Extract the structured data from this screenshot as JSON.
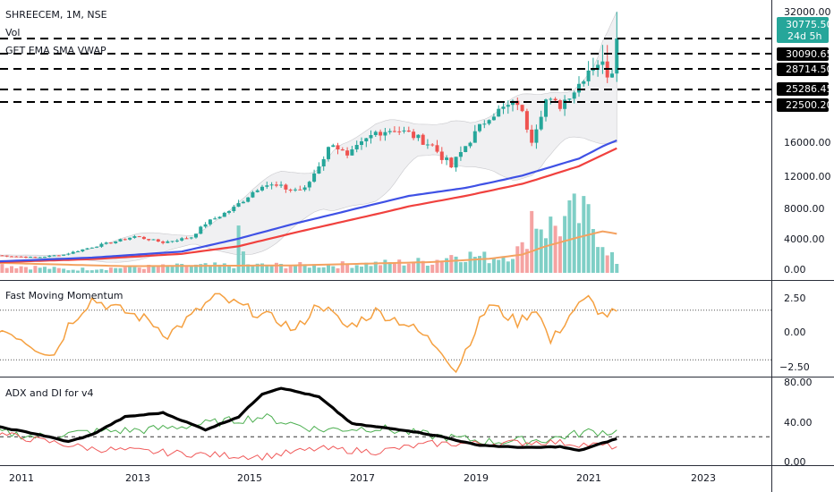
{
  "header": {
    "symbol": "SHREECEM, 1M, NSE",
    "volume_label": "Vol",
    "overlay_label": "GET EMA SMA VWAP"
  },
  "panes": {
    "momentum_title": "Fast Moving Momentum",
    "adx_title": "ADX and DI for v4"
  },
  "price_axis": {
    "ticks": [
      "32000.00",
      "16000.00",
      "12000.00",
      "8000.00",
      "4000.00",
      "0.00"
    ],
    "last_price": "30775.50",
    "countdown": "24d 5h",
    "levels": [
      "30090.65",
      "28714.50",
      "25286.45",
      "22500.20"
    ]
  },
  "momentum_axis": {
    "ticks": [
      "2.50",
      "0.00",
      "−2.50"
    ]
  },
  "adx_axis": {
    "ticks": [
      "80.00",
      "40.00",
      "0.00"
    ]
  },
  "time_axis": {
    "ticks": [
      "2011",
      "2013",
      "2015",
      "2017",
      "2019",
      "2021",
      "2023"
    ]
  },
  "colors": {
    "up": "#26a69a",
    "down": "#ef5350",
    "ema": "#3f51e5",
    "sma": "#f0413e",
    "vwap": "#f4a261",
    "momentum": "#f5a040",
    "adx": "#000000",
    "di_plus": "#4caf50",
    "di_minus": "#f05a5a",
    "last_price_bg": "#26a69a"
  },
  "chart_data": {
    "type": "candlestick",
    "x_range": [
      "2010-10",
      "2024-02"
    ],
    "price_ylim": [
      0,
      32000
    ],
    "price_levels": [
      30090.65,
      28714.5,
      25286.45,
      22500.2
    ],
    "last_price": 30775.5,
    "price_anchors": [
      [
        "2010-10",
        2300
      ],
      [
        "2011-06",
        2000
      ],
      [
        "2011-12",
        2400
      ],
      [
        "2012-06",
        3400
      ],
      [
        "2012-12",
        4300
      ],
      [
        "2013-03",
        4800
      ],
      [
        "2013-09",
        4000
      ],
      [
        "2014-03",
        4700
      ],
      [
        "2014-06",
        6500
      ],
      [
        "2014-12",
        8500
      ],
      [
        "2015-06",
        11500
      ],
      [
        "2015-12",
        10800
      ],
      [
        "2016-03",
        10800
      ],
      [
        "2016-06",
        13800
      ],
      [
        "2016-09",
        16500
      ],
      [
        "2016-12",
        14500
      ],
      [
        "2017-06",
        18000
      ],
      [
        "2017-10",
        18500
      ],
      [
        "2018-01",
        17800
      ],
      [
        "2018-06",
        16000
      ],
      [
        "2018-10",
        13500
      ],
      [
        "2019-01",
        16000
      ],
      [
        "2019-06",
        20500
      ],
      [
        "2019-12",
        22500
      ],
      [
        "2020-03",
        17000
      ],
      [
        "2020-06",
        23000
      ],
      [
        "2020-09",
        22000
      ],
      [
        "2020-12",
        25000
      ],
      [
        "2021-03",
        28714.5
      ],
      [
        "2021-05",
        29500
      ],
      [
        "2021-06",
        28800
      ],
      [
        "2021-07",
        28000
      ],
      [
        "2021-08",
        28600
      ],
      [
        "2021-09",
        30775.5
      ]
    ],
    "ema_anchors": [
      [
        "2010-10",
        1500
      ],
      [
        "2012-06",
        2000
      ],
      [
        "2014-01",
        2800
      ],
      [
        "2015-01",
        4500
      ],
      [
        "2016-01",
        6500
      ],
      [
        "2017-01",
        8300
      ],
      [
        "2018-01",
        10000
      ],
      [
        "2019-01",
        11000
      ],
      [
        "2020-01",
        12500
      ],
      [
        "2021-01",
        14500
      ],
      [
        "2021-09",
        16800
      ]
    ],
    "sma_anchors": [
      [
        "2010-10",
        1400
      ],
      [
        "2012-06",
        1800
      ],
      [
        "2014-01",
        2500
      ],
      [
        "2015-01",
        3500
      ],
      [
        "2016-01",
        5300
      ],
      [
        "2017-01",
        7000
      ],
      [
        "2018-01",
        8700
      ],
      [
        "2019-01",
        10000
      ],
      [
        "2020-01",
        11500
      ],
      [
        "2021-01",
        13600
      ],
      [
        "2021-09",
        15700
      ]
    ],
    "volume_anchors": [
      [
        "2010-10",
        1000
      ],
      [
        "2012-01",
        400
      ],
      [
        "2013-01",
        650
      ],
      [
        "2014-01",
        800
      ],
      [
        "2014-12",
        900
      ],
      [
        "2015-01",
        4000
      ],
      [
        "2015-03",
        900
      ],
      [
        "2016-06",
        900
      ],
      [
        "2017-06",
        1100
      ],
      [
        "2018-06",
        1400
      ],
      [
        "2018-11",
        2300
      ],
      [
        "2019-06",
        1800
      ],
      [
        "2020-01",
        2800
      ],
      [
        "2020-03",
        7200
      ],
      [
        "2020-06",
        5500
      ],
      [
        "2020-09",
        5800
      ],
      [
        "2020-12",
        6800
      ],
      [
        "2021-03",
        6500
      ],
      [
        "2021-06",
        4200
      ],
      [
        "2021-09",
        1000
      ]
    ],
    "vwap_anchors": [
      [
        "2010-10",
        1200
      ],
      [
        "2013-01",
        800
      ],
      [
        "2016-01",
        900
      ],
      [
        "2018-06",
        1300
      ],
      [
        "2019-06",
        1700
      ],
      [
        "2020-01",
        2200
      ],
      [
        "2020-06",
        3200
      ],
      [
        "2021-01",
        4300
      ],
      [
        "2021-06",
        5000
      ],
      [
        "2021-09",
        4700
      ]
    ],
    "momentum_ylim": [
      -3.0,
      3.5
    ],
    "momentum_levels": [
      2.0,
      -2.0
    ],
    "momentum_anchors": [
      [
        "2010-10",
        0.5
      ],
      [
        "2011-02",
        0.0
      ],
      [
        "2011-06",
        -1.0
      ],
      [
        "2011-10",
        -1.6
      ],
      [
        "2012-01",
        0.8
      ],
      [
        "2012-06",
        2.9
      ],
      [
        "2012-12",
        2.0
      ],
      [
        "2013-06",
        1.2
      ],
      [
        "2013-10",
        0.0
      ],
      [
        "2014-03",
        1.5
      ],
      [
        "2014-08",
        3.1
      ],
      [
        "2015-01",
        2.4
      ],
      [
        "2015-06",
        1.6
      ],
      [
        "2015-10",
        1.1
      ],
      [
        "2016-01",
        0.3
      ],
      [
        "2016-06",
        2.6
      ],
      [
        "2016-12",
        0.6
      ],
      [
        "2017-06",
        1.9
      ],
      [
        "2017-12",
        1.0
      ],
      [
        "2018-04",
        0.0
      ],
      [
        "2018-08",
        -1.2
      ],
      [
        "2018-11",
        -2.9
      ],
      [
        "2019-02",
        -0.4
      ],
      [
        "2019-06",
        2.5
      ],
      [
        "2019-12",
        1.0
      ],
      [
        "2020-04",
        2.2
      ],
      [
        "2020-07",
        -0.6
      ],
      [
        "2020-12",
        2.1
      ],
      [
        "2021-03",
        2.9
      ],
      [
        "2021-06",
        1.6
      ],
      [
        "2021-09",
        1.8
      ]
    ],
    "adx_ylim": [
      0,
      80
    ],
    "adx_level": 25,
    "adx_anchors": [
      [
        "2010-10",
        35
      ],
      [
        "2011-06",
        28
      ],
      [
        "2012-01",
        20
      ],
      [
        "2012-06",
        27
      ],
      [
        "2013-01",
        45
      ],
      [
        "2013-09",
        49
      ],
      [
        "2014-06",
        32
      ],
      [
        "2015-01",
        45
      ],
      [
        "2015-06",
        68
      ],
      [
        "2015-10",
        74
      ],
      [
        "2016-06",
        65
      ],
      [
        "2017-01",
        38
      ],
      [
        "2017-06",
        35
      ],
      [
        "2018-01",
        31
      ],
      [
        "2018-08",
        25
      ],
      [
        "2019-03",
        17
      ],
      [
        "2019-09",
        15
      ],
      [
        "2020-03",
        14
      ],
      [
        "2020-09",
        15
      ],
      [
        "2021-01",
        11
      ],
      [
        "2021-09",
        23
      ]
    ],
    "di_plus_anchors": [
      [
        "2010-10",
        30
      ],
      [
        "2011-06",
        25
      ],
      [
        "2012-06",
        30
      ],
      [
        "2013-06",
        32
      ],
      [
        "2014-06",
        38
      ],
      [
        "2015-06",
        45
      ],
      [
        "2016-06",
        32
      ],
      [
        "2017-06",
        34
      ],
      [
        "2018-06",
        26
      ],
      [
        "2019-06",
        20
      ],
      [
        "2020-06",
        22
      ],
      [
        "2021-03",
        30
      ],
      [
        "2021-09",
        30
      ]
    ],
    "di_minus_anchors": [
      [
        "2010-10",
        28
      ],
      [
        "2011-06",
        22
      ],
      [
        "2012-06",
        13
      ],
      [
        "2013-06",
        10
      ],
      [
        "2014-06",
        7
      ],
      [
        "2015-06",
        5
      ],
      [
        "2016-06",
        13
      ],
      [
        "2017-06",
        10
      ],
      [
        "2018-06",
        18
      ],
      [
        "2019-06",
        18
      ],
      [
        "2020-06",
        20
      ],
      [
        "2021-03",
        17
      ],
      [
        "2021-09",
        15
      ]
    ]
  }
}
